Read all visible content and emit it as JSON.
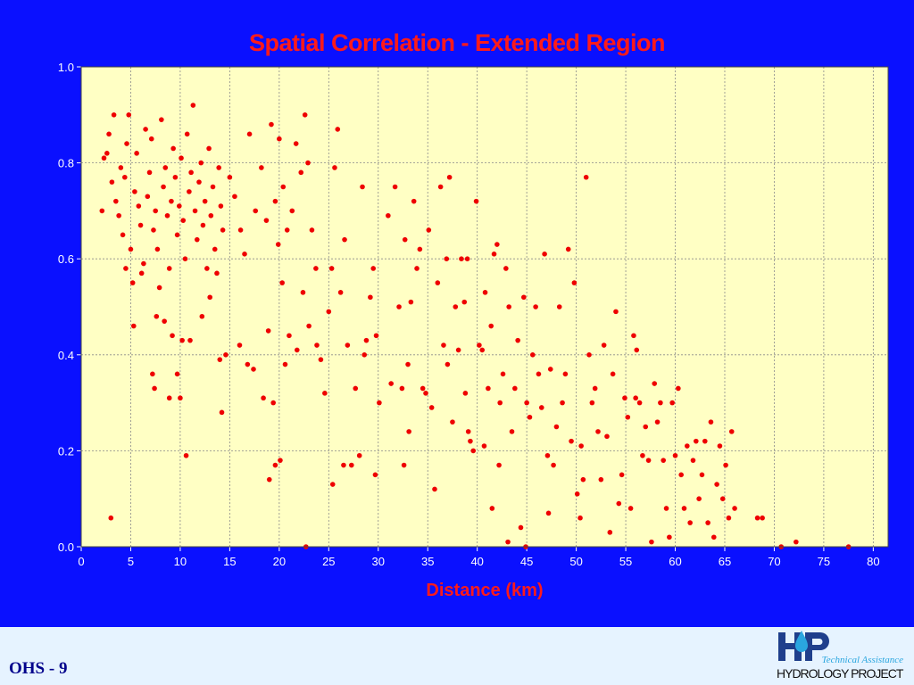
{
  "slide": {
    "footer_label": "OHS - 9",
    "logo_tagline": "Technical Assistance",
    "logo_name": "HYDROLOGY PROJECT"
  },
  "colors": {
    "background": "#0a10ff",
    "plot_area": "#ffffc4",
    "points": "#ee0000",
    "title": "#ff1a1a",
    "footer_band": "#e6f3ff"
  },
  "chart_data": {
    "type": "scatter",
    "title": "Spatial Correlation - Extended Region",
    "xlabel": "Distance (km)",
    "ylabel": "",
    "xlim": [
      0,
      81.5
    ],
    "ylim": [
      0,
      1.0
    ],
    "xticks": [
      "0",
      "5",
      "10",
      "15",
      "20",
      "25",
      "30",
      "35",
      "40",
      "45",
      "50",
      "55",
      "60",
      "65",
      "70",
      "75",
      "80"
    ],
    "yticks": [
      "0.0",
      "0.2",
      "0.4",
      "0.6",
      "0.8",
      "1.0"
    ],
    "grid": true,
    "grid_style": "dotted",
    "legend": "none",
    "points": [
      [
        2.1,
        0.7
      ],
      [
        2.3,
        0.81
      ],
      [
        2.6,
        0.82
      ],
      [
        2.8,
        0.86
      ],
      [
        3.1,
        0.76
      ],
      [
        3.3,
        0.9
      ],
      [
        3.5,
        0.72
      ],
      [
        3.8,
        0.69
      ],
      [
        4.0,
        0.79
      ],
      [
        4.2,
        0.65
      ],
      [
        4.4,
        0.77
      ],
      [
        4.6,
        0.84
      ],
      [
        4.8,
        0.9
      ],
      [
        5.0,
        0.62
      ],
      [
        5.2,
        0.55
      ],
      [
        5.4,
        0.74
      ],
      [
        5.6,
        0.82
      ],
      [
        5.8,
        0.71
      ],
      [
        6.0,
        0.67
      ],
      [
        6.3,
        0.59
      ],
      [
        6.5,
        0.87
      ],
      [
        6.7,
        0.73
      ],
      [
        6.9,
        0.78
      ],
      [
        7.1,
        0.85
      ],
      [
        7.3,
        0.66
      ],
      [
        7.5,
        0.7
      ],
      [
        7.7,
        0.62
      ],
      [
        7.9,
        0.54
      ],
      [
        8.1,
        0.89
      ],
      [
        8.3,
        0.75
      ],
      [
        8.5,
        0.79
      ],
      [
        8.7,
        0.69
      ],
      [
        8.9,
        0.58
      ],
      [
        9.1,
        0.72
      ],
      [
        9.3,
        0.83
      ],
      [
        9.5,
        0.77
      ],
      [
        9.7,
        0.65
      ],
      [
        9.9,
        0.71
      ],
      [
        10.1,
        0.81
      ],
      [
        10.3,
        0.68
      ],
      [
        10.5,
        0.6
      ],
      [
        10.7,
        0.86
      ],
      [
        10.9,
        0.74
      ],
      [
        11.1,
        0.78
      ],
      [
        11.3,
        0.92
      ],
      [
        11.5,
        0.7
      ],
      [
        11.7,
        0.64
      ],
      [
        11.9,
        0.76
      ],
      [
        12.1,
        0.8
      ],
      [
        12.3,
        0.67
      ],
      [
        12.5,
        0.72
      ],
      [
        12.7,
        0.58
      ],
      [
        12.9,
        0.83
      ],
      [
        13.1,
        0.69
      ],
      [
        13.3,
        0.75
      ],
      [
        13.5,
        0.62
      ],
      [
        13.7,
        0.57
      ],
      [
        13.9,
        0.79
      ],
      [
        14.1,
        0.71
      ],
      [
        14.3,
        0.66
      ],
      [
        4.5,
        0.58
      ],
      [
        5.3,
        0.46
      ],
      [
        7.6,
        0.48
      ],
      [
        7.2,
        0.36
      ],
      [
        8.4,
        0.47
      ],
      [
        9.2,
        0.44
      ],
      [
        9.7,
        0.36
      ],
      [
        10.2,
        0.43
      ],
      [
        11.0,
        0.43
      ],
      [
        12.2,
        0.48
      ],
      [
        13.0,
        0.52
      ],
      [
        14.0,
        0.39
      ],
      [
        14.6,
        0.4
      ],
      [
        14.2,
        0.28
      ],
      [
        10.6,
        0.19
      ],
      [
        10.0,
        0.31
      ],
      [
        8.9,
        0.31
      ],
      [
        7.4,
        0.33
      ],
      [
        3.0,
        0.06
      ],
      [
        6.1,
        0.57
      ],
      [
        15.0,
        0.77
      ],
      [
        15.5,
        0.73
      ],
      [
        16.1,
        0.66
      ],
      [
        16.5,
        0.61
      ],
      [
        17.0,
        0.86
      ],
      [
        17.6,
        0.7
      ],
      [
        18.2,
        0.79
      ],
      [
        18.7,
        0.68
      ],
      [
        19.2,
        0.88
      ],
      [
        19.6,
        0.72
      ],
      [
        20.0,
        0.85
      ],
      [
        20.4,
        0.75
      ],
      [
        20.8,
        0.66
      ],
      [
        21.3,
        0.7
      ],
      [
        21.7,
        0.84
      ],
      [
        22.2,
        0.78
      ],
      [
        22.6,
        0.9
      ],
      [
        22.9,
        0.8
      ],
      [
        23.3,
        0.66
      ],
      [
        23.7,
        0.58
      ],
      [
        16.0,
        0.42
      ],
      [
        16.8,
        0.38
      ],
      [
        17.4,
        0.37
      ],
      [
        18.4,
        0.31
      ],
      [
        18.9,
        0.45
      ],
      [
        19.4,
        0.3
      ],
      [
        19.9,
        0.63
      ],
      [
        20.3,
        0.55
      ],
      [
        20.6,
        0.38
      ],
      [
        21.0,
        0.44
      ],
      [
        21.8,
        0.41
      ],
      [
        22.4,
        0.53
      ],
      [
        23.0,
        0.46
      ],
      [
        23.8,
        0.42
      ],
      [
        24.2,
        0.39
      ],
      [
        24.6,
        0.32
      ],
      [
        19.0,
        0.14
      ],
      [
        19.6,
        0.17
      ],
      [
        20.1,
        0.18
      ],
      [
        22.7,
        0.0
      ],
      [
        25.0,
        0.49
      ],
      [
        25.3,
        0.58
      ],
      [
        25.6,
        0.79
      ],
      [
        25.9,
        0.87
      ],
      [
        26.2,
        0.53
      ],
      [
        26.6,
        0.64
      ],
      [
        26.9,
        0.42
      ],
      [
        27.3,
        0.17
      ],
      [
        27.7,
        0.33
      ],
      [
        28.1,
        0.19
      ],
      [
        28.4,
        0.75
      ],
      [
        28.8,
        0.43
      ],
      [
        29.2,
        0.52
      ],
      [
        29.5,
        0.58
      ],
      [
        29.8,
        0.44
      ],
      [
        30.1,
        0.3
      ],
      [
        25.4,
        0.13
      ],
      [
        26.5,
        0.17
      ],
      [
        29.7,
        0.15
      ],
      [
        28.6,
        0.4
      ],
      [
        31.0,
        0.69
      ],
      [
        31.3,
        0.34
      ],
      [
        31.7,
        0.75
      ],
      [
        32.1,
        0.5
      ],
      [
        32.4,
        0.33
      ],
      [
        32.7,
        0.64
      ],
      [
        33.0,
        0.38
      ],
      [
        33.3,
        0.51
      ],
      [
        33.6,
        0.72
      ],
      [
        33.9,
        0.58
      ],
      [
        34.2,
        0.62
      ],
      [
        34.5,
        0.33
      ],
      [
        34.8,
        0.32
      ],
      [
        35.1,
        0.66
      ],
      [
        35.4,
        0.29
      ],
      [
        35.7,
        0.12
      ],
      [
        36.0,
        0.55
      ],
      [
        36.3,
        0.75
      ],
      [
        36.6,
        0.42
      ],
      [
        36.9,
        0.6
      ],
      [
        37.2,
        0.77
      ],
      [
        37.5,
        0.26
      ],
      [
        37.8,
        0.5
      ],
      [
        38.1,
        0.41
      ],
      [
        38.4,
        0.6
      ],
      [
        38.7,
        0.51
      ],
      [
        39.0,
        0.6
      ],
      [
        39.3,
        0.22
      ],
      [
        39.6,
        0.2
      ],
      [
        39.9,
        0.72
      ],
      [
        40.2,
        0.42
      ],
      [
        40.5,
        0.41
      ],
      [
        40.8,
        0.53
      ],
      [
        41.1,
        0.33
      ],
      [
        41.4,
        0.46
      ],
      [
        41.7,
        0.61
      ],
      [
        42.0,
        0.63
      ],
      [
        42.3,
        0.3
      ],
      [
        42.6,
        0.36
      ],
      [
        42.9,
        0.58
      ],
      [
        43.2,
        0.5
      ],
      [
        43.5,
        0.24
      ],
      [
        43.8,
        0.33
      ],
      [
        44.1,
        0.43
      ],
      [
        44.4,
        0.04
      ],
      [
        44.7,
        0.52
      ],
      [
        45.0,
        0.3
      ],
      [
        45.3,
        0.27
      ],
      [
        45.6,
        0.4
      ],
      [
        45.9,
        0.5
      ],
      [
        32.6,
        0.17
      ],
      [
        33.1,
        0.24
      ],
      [
        39.1,
        0.24
      ],
      [
        40.7,
        0.21
      ],
      [
        41.5,
        0.08
      ],
      [
        43.1,
        0.01
      ],
      [
        44.9,
        0.0
      ],
      [
        37.0,
        0.38
      ],
      [
        38.8,
        0.32
      ],
      [
        42.2,
        0.17
      ],
      [
        46.2,
        0.36
      ],
      [
        46.5,
        0.29
      ],
      [
        46.8,
        0.61
      ],
      [
        47.1,
        0.19
      ],
      [
        47.4,
        0.37
      ],
      [
        47.7,
        0.17
      ],
      [
        48.0,
        0.25
      ],
      [
        48.3,
        0.5
      ],
      [
        48.6,
        0.3
      ],
      [
        48.9,
        0.36
      ],
      [
        49.2,
        0.62
      ],
      [
        49.5,
        0.22
      ],
      [
        49.8,
        0.55
      ],
      [
        50.1,
        0.11
      ],
      [
        50.4,
        0.06
      ],
      [
        50.7,
        0.14
      ],
      [
        51.0,
        0.77
      ],
      [
        51.3,
        0.4
      ],
      [
        51.6,
        0.3
      ],
      [
        51.9,
        0.33
      ],
      [
        52.2,
        0.24
      ],
      [
        52.5,
        0.14
      ],
      [
        52.8,
        0.42
      ],
      [
        53.1,
        0.23
      ],
      [
        53.4,
        0.03
      ],
      [
        53.7,
        0.36
      ],
      [
        54.0,
        0.49
      ],
      [
        54.3,
        0.09
      ],
      [
        54.6,
        0.15
      ],
      [
        54.9,
        0.31
      ],
      [
        55.2,
        0.27
      ],
      [
        55.5,
        0.08
      ],
      [
        55.8,
        0.44
      ],
      [
        56.1,
        0.41
      ],
      [
        56.4,
        0.3
      ],
      [
        56.7,
        0.19
      ],
      [
        57.0,
        0.25
      ],
      [
        57.3,
        0.18
      ],
      [
        57.6,
        0.01
      ],
      [
        57.9,
        0.34
      ],
      [
        58.2,
        0.26
      ],
      [
        58.5,
        0.3
      ],
      [
        58.8,
        0.18
      ],
      [
        59.1,
        0.08
      ],
      [
        59.4,
        0.02
      ],
      [
        59.7,
        0.3
      ],
      [
        60.0,
        0.19
      ],
      [
        60.3,
        0.33
      ],
      [
        60.6,
        0.15
      ],
      [
        60.9,
        0.08
      ],
      [
        61.2,
        0.21
      ],
      [
        61.5,
        0.05
      ],
      [
        61.8,
        0.18
      ],
      [
        62.1,
        0.22
      ],
      [
        62.4,
        0.1
      ],
      [
        62.7,
        0.15
      ],
      [
        63.0,
        0.22
      ],
      [
        63.3,
        0.05
      ],
      [
        63.6,
        0.26
      ],
      [
        63.9,
        0.02
      ],
      [
        64.2,
        0.13
      ],
      [
        64.5,
        0.21
      ],
      [
        64.8,
        0.1
      ],
      [
        65.1,
        0.17
      ],
      [
        65.4,
        0.06
      ],
      [
        65.7,
        0.24
      ],
      [
        66.0,
        0.08
      ],
      [
        47.2,
        0.07
      ],
      [
        50.5,
        0.21
      ],
      [
        56.0,
        0.31
      ],
      [
        68.3,
        0.06
      ],
      [
        68.8,
        0.06
      ],
      [
        70.7,
        0.0
      ],
      [
        72.2,
        0.01
      ],
      [
        77.5,
        0.0
      ]
    ]
  }
}
